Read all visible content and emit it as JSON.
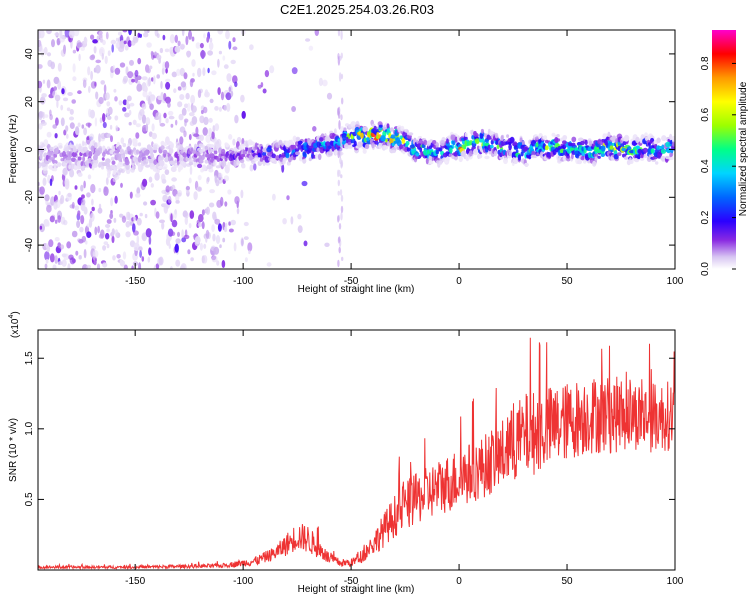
{
  "figure": {
    "title": "C2E1.2025.254.03.26.R03"
  },
  "chart_data": [
    {
      "type": "heatmap",
      "name": "spectrogram",
      "xlabel": "Height of straight line (km)",
      "ylabel": "Frequency (Hz)",
      "xlim": [
        -195,
        100
      ],
      "ylim": [
        -50,
        50
      ],
      "xticks": [
        -150,
        -100,
        -50,
        0,
        50,
        100
      ],
      "yticks": [
        -40,
        -20,
        0,
        20,
        40
      ],
      "colorbar": {
        "label": "Normalized spectral amplitude",
        "range": [
          0,
          0.93
        ],
        "ticks": [
          0.0,
          0.2,
          0.4,
          0.6,
          0.8
        ],
        "tick_labels": [
          "0.0",
          "0.2",
          "0.4",
          "0.6",
          "0.8"
        ],
        "colormap": [
          "#ffffff",
          "#d8c6f2",
          "#8a2be2",
          "#2a00ff",
          "#0066ff",
          "#00d4ff",
          "#00ff88",
          "#9cff00",
          "#ffff00",
          "#ff9900",
          "#ff0000",
          "#ff00cc"
        ]
      },
      "ridge": {
        "description_points_km": [
          -120,
          -100,
          -80,
          -60,
          -50,
          -40,
          -30,
          -20,
          -10,
          0,
          10,
          20,
          30,
          40,
          50,
          60,
          70,
          80,
          90,
          100
        ],
        "center_hz": [
          -3,
          -2,
          -1,
          2,
          5,
          6,
          5,
          0,
          -1,
          1,
          3,
          1,
          -1,
          1,
          0,
          -1,
          1,
          0,
          0,
          0
        ],
        "peak_amplitude": [
          0.15,
          0.25,
          0.35,
          0.45,
          0.6,
          0.85,
          0.7,
          0.55,
          0.5,
          0.75,
          0.6,
          0.5,
          0.55,
          0.6,
          0.55,
          0.6,
          0.65,
          0.55,
          0.5,
          0.5
        ]
      }
    },
    {
      "type": "line",
      "name": "snr",
      "xlabel": "Height of straight line (km)",
      "ylabel": "SNR (10 * v/v)",
      "y_multiplier": "(x10",
      "y_multiplier_exp": "4",
      "y_multiplier_close": ")",
      "xlim": [
        -195,
        100
      ],
      "ylim": [
        0,
        1.7
      ],
      "xticks": [
        -150,
        -100,
        -50,
        0,
        50,
        100
      ],
      "yticks": [
        0.5,
        1.0,
        1.5
      ],
      "ytick_labels": [
        "0.5",
        "1.0",
        "1.5"
      ],
      "color": "#ee3333",
      "trend_km": [
        -195,
        -150,
        -110,
        -95,
        -85,
        -80,
        -75,
        -70,
        -65,
        -60,
        -55,
        -50,
        -45,
        -40,
        -35,
        -30,
        -25,
        -20,
        -10,
        0,
        10,
        20,
        30,
        40,
        50,
        60,
        70,
        80,
        90,
        100
      ],
      "trend_snr": [
        0.02,
        0.02,
        0.03,
        0.06,
        0.12,
        0.18,
        0.24,
        0.22,
        0.15,
        0.08,
        0.05,
        0.05,
        0.1,
        0.18,
        0.28,
        0.38,
        0.45,
        0.5,
        0.58,
        0.65,
        0.72,
        0.82,
        0.95,
        1.0,
        1.05,
        1.1,
        1.1,
        1.1,
        1.08,
        1.1
      ],
      "noise_amplitude": [
        0.01,
        0.01,
        0.015,
        0.03,
        0.05,
        0.08,
        0.1,
        0.1,
        0.07,
        0.04,
        0.03,
        0.03,
        0.05,
        0.08,
        0.12,
        0.15,
        0.18,
        0.18,
        0.2,
        0.22,
        0.22,
        0.25,
        0.3,
        0.3,
        0.28,
        0.28,
        0.28,
        0.25,
        0.25,
        0.25
      ]
    }
  ]
}
